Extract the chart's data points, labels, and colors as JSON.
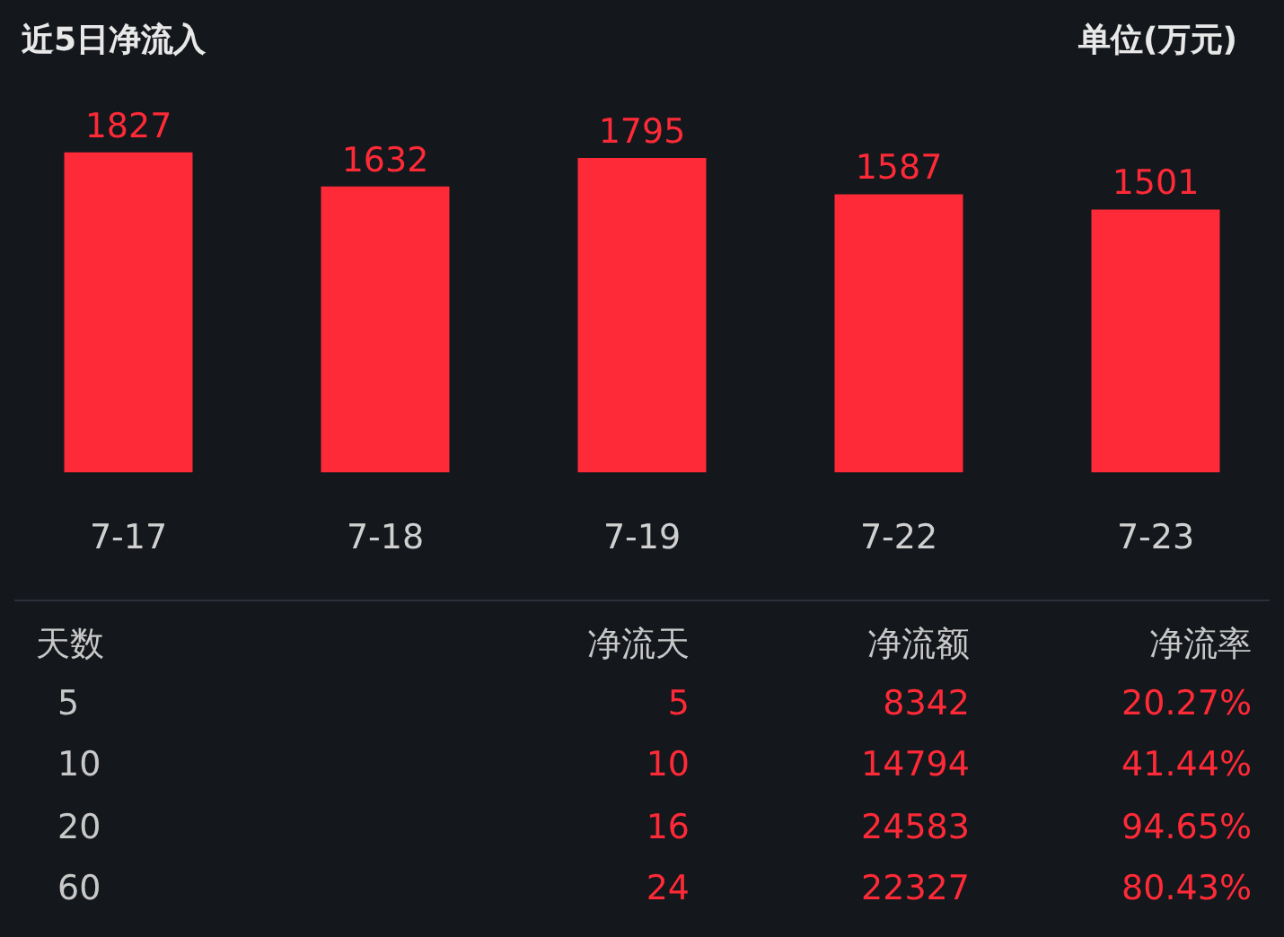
{
  "chart_data": {
    "type": "bar",
    "title": "近5日净流入",
    "ylabel": "单位(万元)",
    "categories": [
      "7-17",
      "7-18",
      "7-19",
      "7-22",
      "7-23"
    ],
    "values": [
      1827,
      1632,
      1795,
      1587,
      1501
    ],
    "color": "#fe2a37",
    "data_labels": true,
    "annotations": [
      "天数",
      "净流天",
      "净流额",
      "净流率",
      "5",
      "5",
      "8342",
      "20.27%",
      "10",
      "10",
      "14794",
      "41.44%",
      "20",
      "16",
      "24583",
      "94.65%",
      "60",
      "24",
      "22327",
      "80.43%"
    ]
  }
}
